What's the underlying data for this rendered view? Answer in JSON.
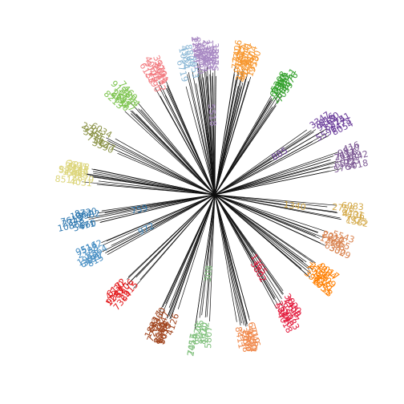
{
  "tree": {
    "type": "radial-dendrogram",
    "root_color": "#000000",
    "clusters": [
      {
        "id": "c01",
        "color": "#a889c3",
        "tips": [
          "1210",
          "9413",
          "2771",
          "5130",
          "8808",
          "6902",
          "4217",
          "9344",
          "3160",
          "7485",
          "2309",
          "1188",
          "2503",
          "8812",
          "6045",
          "3392",
          "5518"
        ],
        "inner": [
          "5518"
        ]
      },
      {
        "id": "c02",
        "color": "#f7972f",
        "tips": [
          "7731",
          "2406",
          "6625",
          "9132",
          "1457",
          "3878",
          "5041",
          "8716",
          "4423",
          "6190",
          "2967",
          "7604",
          "1315",
          "9580"
        ],
        "inner": []
      },
      {
        "id": "c03",
        "color": "#33a02c",
        "tips": [
          "5208",
          "8463",
          "1097",
          "6734",
          "3312",
          "9951",
          "2685",
          "4476",
          "7039"
        ],
        "inner": []
      },
      {
        "id": "c04",
        "color": "#6a3d9a",
        "tips": [
          "3347",
          "7016",
          "4580",
          "9162",
          "2241",
          "6815",
          "1478",
          "5590",
          "8054"
        ],
        "inner": [
          "885"
        ]
      },
      {
        "id": "c05",
        "color": "#7d5a94",
        "tips": [
          "416",
          "9830",
          "2617",
          "7156",
          "4309",
          "8842",
          "1923",
          "6571",
          "3018",
          "5764"
        ],
        "inner": []
      },
      {
        "id": "c06",
        "color": "#d4aa4a",
        "tips": [
          "6083",
          "2758",
          "9401",
          "4136",
          "7925",
          "1582"
        ],
        "inner": [
          "1340"
        ]
      },
      {
        "id": "c07",
        "color": "#d9834f",
        "tips": [
          "5543",
          "2210",
          "8927",
          "4765",
          "1346",
          "7198",
          "6330",
          "3029"
        ],
        "inner": []
      },
      {
        "id": "c08",
        "color": "#ff7f00",
        "tips": [
          "9017",
          "4384",
          "2150",
          "7623",
          "5809",
          "1476",
          "8261",
          "3902",
          "6738",
          "1055"
        ],
        "inner": []
      },
      {
        "id": "c09",
        "color": "#e31a3c",
        "tips": [
          "3820",
          "7459",
          "1106",
          "6247",
          "9083",
          "2514",
          "5372",
          "8640",
          "4018"
        ],
        "inner": [
          "1365",
          "3802"
        ]
      },
      {
        "id": "c10",
        "color": "#f0894c",
        "tips": [
          "2046",
          "6719",
          "4382",
          "9150",
          "1527",
          "7803",
          "3264",
          "5938",
          "8411"
        ],
        "inner": []
      },
      {
        "id": "c11",
        "color": "#7fbf7b",
        "tips": [
          "5807",
          "1342",
          "8670",
          "3195",
          "6928",
          "2453",
          "7016"
        ],
        "inner": [
          "308"
        ]
      },
      {
        "id": "c12",
        "color": "#a0451f",
        "tips": [
          "4126",
          "9073",
          "1658",
          "6302",
          "2784",
          "8519",
          "3947",
          "7201",
          "5360",
          "1892",
          "6617"
        ],
        "inner": []
      },
      {
        "id": "c13",
        "color": "#e31a1c",
        "tips": [
          "7364",
          "2915",
          "5806",
          "1283",
          "9047",
          "4530",
          "6172"
        ],
        "inner": []
      },
      {
        "id": "c14",
        "color": "#4a90c4",
        "tips": [
          "815",
          "3027",
          "6491",
          "1950",
          "8364",
          "2708",
          "5142",
          "9516"
        ],
        "inner": [
          "972"
        ]
      },
      {
        "id": "c15",
        "color": "#2e78b0",
        "tips": [
          "660",
          "5471",
          "10863",
          "2348",
          "7615",
          "3982",
          "1067",
          "8720"
        ],
        "inner": [
          "759"
        ]
      },
      {
        "id": "c16",
        "color": "#dcd57a",
        "tips": [
          "4031",
          "8512",
          "2679",
          "6845",
          "1308",
          "9274",
          "5720",
          "3156",
          "7493",
          "2018",
          "6605"
        ],
        "inner": []
      },
      {
        "id": "c17",
        "color": "#8a9246",
        "tips": [
          "3590",
          "7142",
          "1877",
          "5426",
          "9361",
          "2705",
          "6034"
        ],
        "inner": []
      },
      {
        "id": "c18",
        "color": "#7ec450",
        "tips": [
          "8213",
          "4650",
          "1392",
          "6987",
          "2541",
          "9108",
          "5376",
          "3824",
          "7460"
        ],
        "inner": []
      },
      {
        "id": "c19",
        "color": "#f27b80",
        "tips": [
          "2390",
          "6158",
          "9725",
          "4067",
          "1832",
          "7519",
          "5204",
          "8641",
          "3370"
        ],
        "inner": []
      },
      {
        "id": "c20",
        "color": "#8cb8d6",
        "tips": [
          "6719",
          "1034",
          "4582",
          "8806",
          "2953"
        ],
        "inner": []
      }
    ]
  }
}
